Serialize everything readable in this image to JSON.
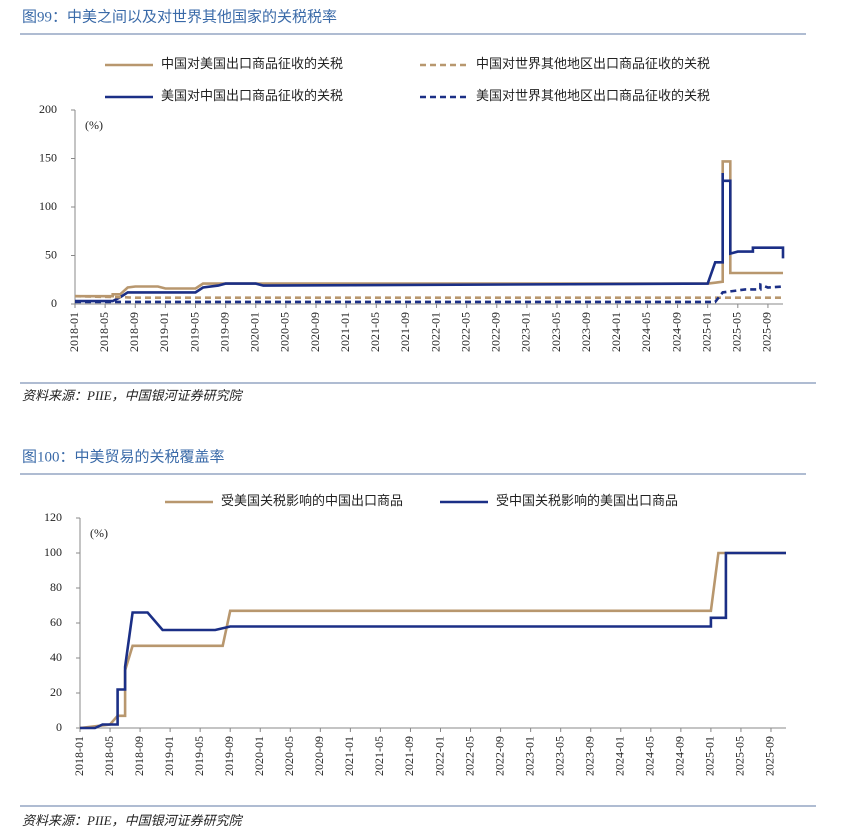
{
  "chart_data": [
    {
      "type": "line",
      "title": "图99：中美之间以及对世界其他国家的关税税率",
      "y_label": "(%)",
      "note": "资料来源：PIIE，中国银河证券研究院",
      "xlim": [
        "2018-01",
        "2025-11"
      ],
      "xticks": [
        "2018-01",
        "2018-05",
        "2018-09",
        "2019-01",
        "2019-05",
        "2019-09",
        "2020-01",
        "2020-05",
        "2020-09",
        "2021-01",
        "2021-05",
        "2021-09",
        "2022-01",
        "2022-05",
        "2022-09",
        "2023-01",
        "2023-05",
        "2023-09",
        "2024-01",
        "2024-05",
        "2024-09",
        "2025-01",
        "2025-05",
        "2025-09"
      ],
      "ylim": [
        0,
        200
      ],
      "yticks": [
        0,
        50,
        100,
        150,
        200
      ],
      "series": [
        {
          "name": "中国对美国出口商品征收的关税",
          "color": "#b8976e",
          "line_style": "solid",
          "x": [
            "2018-01",
            "2018-06",
            "2018-06",
            "2018-07",
            "2018-08",
            "2018-09",
            "2018-12",
            "2019-01",
            "2019-05",
            "2019-06",
            "2025-01",
            "2025-02",
            "2025-03",
            "2025-03",
            "2025-04",
            "2025-04",
            "2025-11"
          ],
          "values": [
            8,
            8,
            10,
            10,
            17,
            18,
            18,
            16,
            16,
            21,
            21,
            22,
            23,
            147,
            147,
            32,
            32
          ]
        },
        {
          "name": "美国对中国出口商品征收的关税",
          "color": "#1b2f86",
          "line_style": "solid",
          "x": [
            "2018-01",
            "2018-06",
            "2018-07",
            "2018-08",
            "2019-05",
            "2019-06",
            "2019-08",
            "2019-09",
            "2020-01",
            "2020-02",
            "2025-01",
            "2025-02",
            "2025-03",
            "2025-03",
            "2025-03",
            "2025-04",
            "2025-04",
            "2025-05",
            "2025-07",
            "2025-07",
            "2025-11",
            "2025-11"
          ],
          "values": [
            3,
            3,
            7,
            12,
            12,
            17,
            19,
            21,
            21,
            19,
            21,
            43,
            43,
            135,
            127,
            127,
            52,
            54,
            54,
            58,
            58,
            47
          ]
        },
        {
          "name": "中国对世界其他地区出口商品征收的关税",
          "color": "#b8976e",
          "line_style": "dashed",
          "x": [
            "2018-01",
            "2018-07",
            "2018-09",
            "2025-11"
          ],
          "values": [
            8,
            7,
            6.5,
            6.5
          ]
        },
        {
          "name": "美国对世界其他地区出口商品征收的关税",
          "color": "#1b2f86",
          "line_style": "dashed",
          "x": [
            "2018-01",
            "2025-02",
            "2025-03",
            "2025-04",
            "2025-06",
            "2025-08",
            "2025-08",
            "2025-09",
            "2025-11"
          ],
          "values": [
            2.2,
            2.2,
            12,
            13,
            15,
            15,
            20,
            17,
            18
          ]
        }
      ]
    },
    {
      "type": "line",
      "title": "图100：中美贸易的关税覆盖率",
      "y_label": "(%)",
      "note": "资料来源：PIIE，中国银河证券研究院",
      "xlim": [
        "2018-01",
        "2025-11"
      ],
      "xticks": [
        "2018-01",
        "2018-05",
        "2018-09",
        "2019-01",
        "2019-05",
        "2019-09",
        "2020-01",
        "2020-05",
        "2020-09",
        "2021-01",
        "2021-05",
        "2021-09",
        "2022-01",
        "2022-05",
        "2022-09",
        "2023-01",
        "2023-05",
        "2023-09",
        "2024-01",
        "2024-05",
        "2024-09",
        "2025-01",
        "2025-05",
        "2025-09"
      ],
      "ylim": [
        0,
        120
      ],
      "yticks": [
        0,
        20,
        40,
        60,
        80,
        100,
        120
      ],
      "series": [
        {
          "name": "受美国关税影响的中国出口商品",
          "color": "#b8976e",
          "line_style": "solid",
          "x": [
            "2018-01",
            "2018-03",
            "2018-05",
            "2018-06",
            "2018-07",
            "2018-07",
            "2018-08",
            "2019-08",
            "2019-09",
            "2025-01",
            "2025-02",
            "2025-11"
          ],
          "values": [
            0,
            1,
            2,
            7,
            7,
            33,
            47,
            47,
            67,
            67,
            100,
            100
          ]
        },
        {
          "name": "受中国关税影响的美国出口商品",
          "color": "#1b2f86",
          "line_style": "solid",
          "x": [
            "2018-01",
            "2018-03",
            "2018-04",
            "2018-06",
            "2018-06",
            "2018-07",
            "2018-07",
            "2018-08",
            "2018-10",
            "2018-12",
            "2019-07",
            "2019-09",
            "2025-01",
            "2025-01",
            "2025-03",
            "2025-03",
            "2025-11"
          ],
          "values": [
            0,
            0,
            2,
            2,
            22,
            22,
            35,
            66,
            66,
            56,
            56,
            58,
            58,
            63,
            63,
            100,
            100
          ]
        }
      ]
    }
  ]
}
